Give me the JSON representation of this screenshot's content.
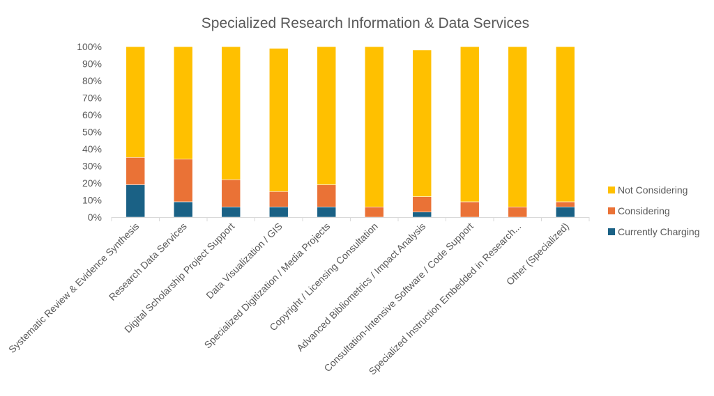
{
  "chart_data": {
    "type": "bar",
    "stacked": true,
    "title": "Specialized Research Information & Data Services",
    "xlabel": "",
    "ylabel": "",
    "ylim": [
      0,
      100
    ],
    "y_ticks": [
      "0%",
      "10%",
      "20%",
      "30%",
      "40%",
      "50%",
      "60%",
      "70%",
      "80%",
      "90%",
      "100%"
    ],
    "grid": false,
    "legend_position": "right",
    "categories": [
      "Systematic Review & Evidence Synthesis",
      "Research Data Services",
      "Digital Scholarship Project Support",
      "Data Visualization / GIS",
      "Specialized Digitization / Media Projects",
      "Copyright / Licensing Consultation",
      "Advanced Bibliometrics / Impact Analysis",
      "Consultation-Intensive Software / Code Support",
      "Specialized Instruction Embedded in Research...",
      "Other (Specialized)"
    ],
    "series": [
      {
        "name": "Currently Charging",
        "color": "#1a6185",
        "values": [
          19,
          9,
          6,
          6,
          6,
          0,
          3,
          0,
          0,
          6
        ]
      },
      {
        "name": "Considering",
        "color": "#ea7236",
        "values": [
          16,
          25,
          16,
          9,
          13,
          6,
          9,
          9,
          6,
          3
        ]
      },
      {
        "name": "Not Considering",
        "color": "#ffc000",
        "values": [
          65,
          66,
          78,
          84,
          81,
          94,
          86,
          91,
          94,
          91
        ]
      }
    ]
  }
}
